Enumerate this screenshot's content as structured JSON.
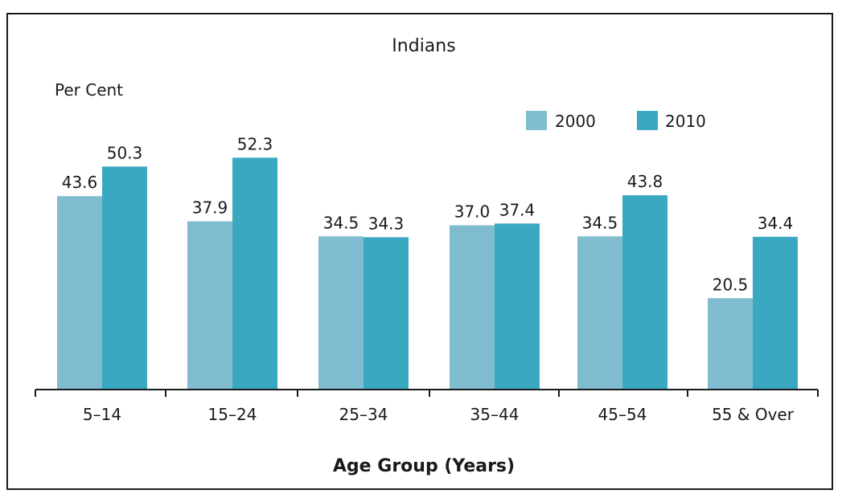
{
  "chart_data": {
    "type": "bar",
    "title": "Indians",
    "ylabel": "Per Cent",
    "xlabel": "Age Group (Years)",
    "categories": [
      "5–14",
      "15–24",
      "25–34",
      "35–44",
      "45–54",
      "55 & Over"
    ],
    "series": [
      {
        "name": "2000",
        "color": "#7fbccf",
        "values": [
          43.6,
          37.9,
          34.5,
          37.0,
          34.5,
          20.5
        ]
      },
      {
        "name": "2010",
        "color": "#3aa8c1",
        "values": [
          50.3,
          52.3,
          34.3,
          37.4,
          43.8,
          34.4
        ]
      }
    ],
    "value_labels": [
      [
        "43.6",
        "37.9",
        "34.5",
        "37.0",
        "34.5",
        "20.5"
      ],
      [
        "50.3",
        "52.3",
        "34.3",
        "37.4",
        "43.8",
        "34.4"
      ]
    ],
    "ylim": [
      0,
      60
    ],
    "grid": false,
    "legend_position": "top-right"
  }
}
